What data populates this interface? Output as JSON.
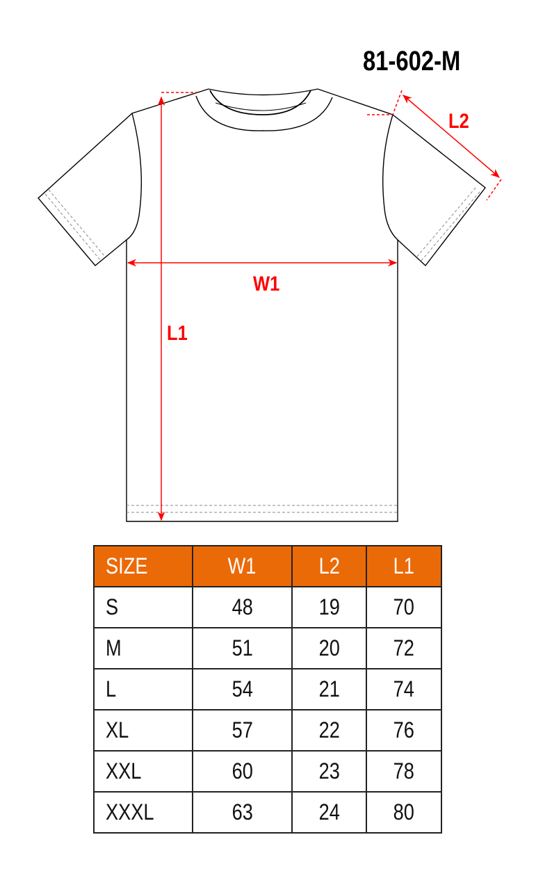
{
  "product_code": "81-602-M",
  "diagram": {
    "labels": {
      "w1": "W1",
      "l1": "L1",
      "l2": "L2"
    },
    "measure_color": "#FF0000",
    "outline_color": "#000000"
  },
  "size_table": {
    "header_color": "#EB6A08",
    "columns": [
      "SIZE",
      "W1",
      "L2",
      "L1"
    ],
    "rows": [
      [
        "S",
        "48",
        "19",
        "70"
      ],
      [
        "M",
        "51",
        "20",
        "72"
      ],
      [
        "L",
        "54",
        "21",
        "74"
      ],
      [
        "XL",
        "57",
        "22",
        "76"
      ],
      [
        "XXL",
        "60",
        "23",
        "78"
      ],
      [
        "XXXL",
        "63",
        "24",
        "80"
      ]
    ]
  }
}
